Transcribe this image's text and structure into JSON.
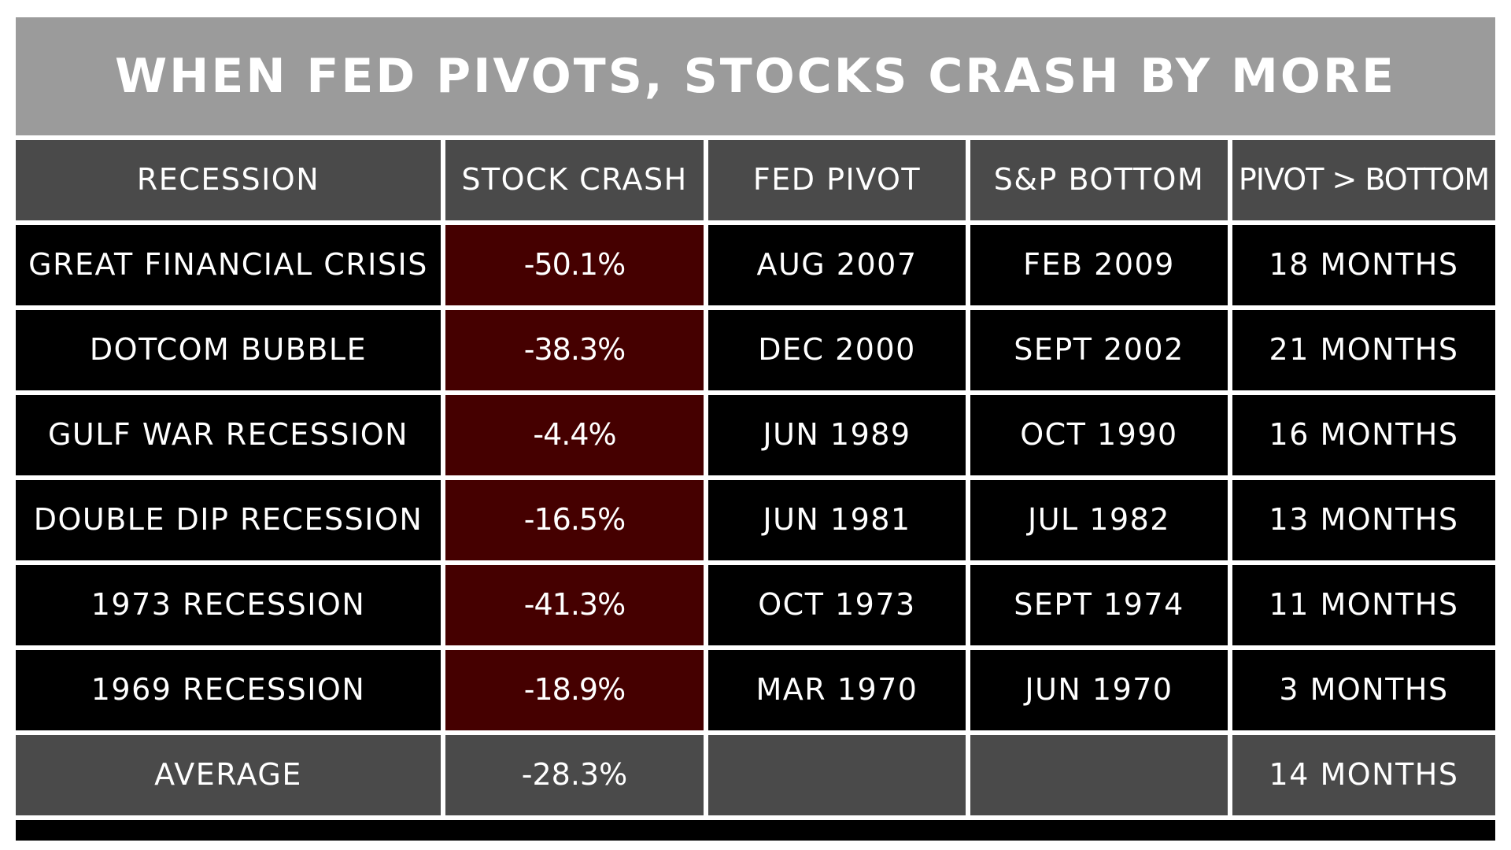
{
  "title": "WHEN FED PIVOTS, STOCKS CRASH BY MORE",
  "colors": {
    "title_bg": "#9b9b9b",
    "header_bg": "#4a4a4a",
    "row_bg": "#000000",
    "crash_bg": "#450000",
    "text": "#ffffff"
  },
  "chart_data": {
    "type": "table",
    "title": "WHEN FED PIVOTS, STOCKS CRASH BY MORE",
    "columns": [
      "RECESSION",
      "STOCK CRASH",
      "FED PIVOT",
      "S&P BOTTOM",
      "PIVOT > BOTTOM"
    ],
    "rows": [
      [
        "GREAT FINANCIAL CRISIS",
        "-50.1%",
        "AUG 2007",
        "FEB 2009",
        "18 MONTHS"
      ],
      [
        "DOTCOM BUBBLE",
        "-38.3%",
        "DEC 2000",
        "SEPT 2002",
        "21 MONTHS"
      ],
      [
        "GULF WAR RECESSION",
        "-4.4%",
        "JUN 1989",
        "OCT 1990",
        "16 MONTHS"
      ],
      [
        "DOUBLE DIP RECESSION",
        "-16.5%",
        "JUN 1981",
        "JUL 1982",
        "13 MONTHS"
      ],
      [
        "1973 RECESSION",
        "-41.3%",
        "OCT 1973",
        "SEPT 1974",
        "11 MONTHS"
      ],
      [
        "1969 RECESSION",
        "-18.9%",
        "MAR 1970",
        "JUN 1970",
        "3 MONTHS"
      ]
    ],
    "average": [
      "AVERAGE",
      "-28.3%",
      "",
      "",
      "14 MONTHS"
    ]
  }
}
